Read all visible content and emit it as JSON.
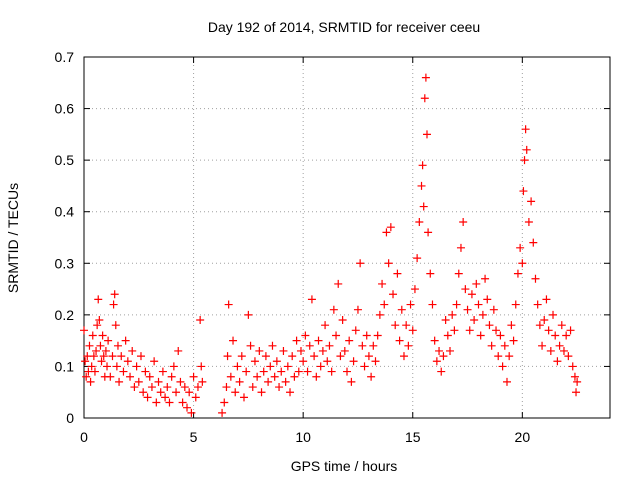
{
  "chart_data": {
    "type": "scatter",
    "title": "Day 192 of 2014, SRMTID for receiver ceeu",
    "xlabel": "GPS time / hours",
    "ylabel": "SRMTID / TECUs",
    "xlim": [
      0,
      24
    ],
    "ylim": [
      0,
      0.7
    ],
    "xticks": [
      0,
      5,
      10,
      15,
      20
    ],
    "yticks": [
      0,
      0.1,
      0.2,
      0.3,
      0.4,
      0.5,
      0.6,
      0.7
    ],
    "grid": true,
    "marker": "+",
    "color": "#ff0000",
    "series": [
      {
        "name": "SRMTID",
        "points": [
          [
            0.0,
            0.17
          ],
          [
            0.05,
            0.11
          ],
          [
            0.1,
            0.08
          ],
          [
            0.15,
            0.12
          ],
          [
            0.2,
            0.09
          ],
          [
            0.25,
            0.14
          ],
          [
            0.3,
            0.07
          ],
          [
            0.35,
            0.1
          ],
          [
            0.4,
            0.16
          ],
          [
            0.45,
            0.12
          ],
          [
            0.5,
            0.09
          ],
          [
            0.55,
            0.13
          ],
          [
            0.6,
            0.18
          ],
          [
            0.65,
            0.23
          ],
          [
            0.7,
            0.19
          ],
          [
            0.75,
            0.14
          ],
          [
            0.8,
            0.11
          ],
          [
            0.85,
            0.16
          ],
          [
            0.9,
            0.12
          ],
          [
            0.95,
            0.08
          ],
          [
            1.0,
            0.13
          ],
          [
            1.05,
            0.1
          ],
          [
            1.1,
            0.15
          ],
          [
            1.2,
            0.08
          ],
          [
            1.3,
            0.12
          ],
          [
            1.35,
            0.22
          ],
          [
            1.4,
            0.24
          ],
          [
            1.45,
            0.18
          ],
          [
            1.5,
            0.1
          ],
          [
            1.55,
            0.14
          ],
          [
            1.6,
            0.07
          ],
          [
            1.7,
            0.12
          ],
          [
            1.8,
            0.09
          ],
          [
            1.9,
            0.15
          ],
          [
            2.0,
            0.11
          ],
          [
            2.1,
            0.08
          ],
          [
            2.2,
            0.13
          ],
          [
            2.3,
            0.06
          ],
          [
            2.4,
            0.1
          ],
          [
            2.5,
            0.07
          ],
          [
            2.6,
            0.12
          ],
          [
            2.7,
            0.05
          ],
          [
            2.8,
            0.09
          ],
          [
            2.9,
            0.04
          ],
          [
            3.0,
            0.08
          ],
          [
            3.1,
            0.06
          ],
          [
            3.2,
            0.11
          ],
          [
            3.3,
            0.03
          ],
          [
            3.4,
            0.07
          ],
          [
            3.5,
            0.05
          ],
          [
            3.6,
            0.09
          ],
          [
            3.7,
            0.04
          ],
          [
            3.8,
            0.06
          ],
          [
            3.9,
            0.03
          ],
          [
            4.0,
            0.08
          ],
          [
            4.1,
            0.1
          ],
          [
            4.2,
            0.05
          ],
          [
            4.3,
            0.13
          ],
          [
            4.4,
            0.07
          ],
          [
            4.5,
            0.03
          ],
          [
            4.6,
            0.06
          ],
          [
            4.7,
            0.02
          ],
          [
            4.8,
            0.05
          ],
          [
            4.9,
            0.01
          ],
          [
            5.0,
            0.08
          ],
          [
            5.1,
            0.04
          ],
          [
            5.2,
            0.06
          ],
          [
            5.3,
            0.19
          ],
          [
            5.35,
            0.1
          ],
          [
            5.4,
            0.07
          ],
          [
            6.3,
            0.01
          ],
          [
            6.4,
            0.03
          ],
          [
            6.5,
            0.06
          ],
          [
            6.55,
            0.12
          ],
          [
            6.6,
            0.22
          ],
          [
            6.7,
            0.08
          ],
          [
            6.8,
            0.15
          ],
          [
            6.9,
            0.05
          ],
          [
            7.0,
            0.1
          ],
          [
            7.1,
            0.07
          ],
          [
            7.2,
            0.12
          ],
          [
            7.3,
            0.04
          ],
          [
            7.4,
            0.09
          ],
          [
            7.5,
            0.2
          ],
          [
            7.6,
            0.14
          ],
          [
            7.7,
            0.06
          ],
          [
            7.8,
            0.11
          ],
          [
            7.9,
            0.08
          ],
          [
            8.0,
            0.13
          ],
          [
            8.1,
            0.05
          ],
          [
            8.2,
            0.09
          ],
          [
            8.3,
            0.12
          ],
          [
            8.4,
            0.07
          ],
          [
            8.5,
            0.1
          ],
          [
            8.6,
            0.14
          ],
          [
            8.7,
            0.08
          ],
          [
            8.8,
            0.11
          ],
          [
            8.9,
            0.06
          ],
          [
            9.0,
            0.09
          ],
          [
            9.1,
            0.13
          ],
          [
            9.2,
            0.07
          ],
          [
            9.3,
            0.1
          ],
          [
            9.4,
            0.05
          ],
          [
            9.5,
            0.12
          ],
          [
            9.6,
            0.08
          ],
          [
            9.7,
            0.15
          ],
          [
            9.8,
            0.09
          ],
          [
            9.9,
            0.13
          ],
          [
            10.0,
            0.11
          ],
          [
            10.1,
            0.16
          ],
          [
            10.2,
            0.09
          ],
          [
            10.3,
            0.14
          ],
          [
            10.4,
            0.23
          ],
          [
            10.5,
            0.12
          ],
          [
            10.6,
            0.08
          ],
          [
            10.7,
            0.15
          ],
          [
            10.8,
            0.1
          ],
          [
            10.9,
            0.13
          ],
          [
            11.0,
            0.18
          ],
          [
            11.1,
            0.11
          ],
          [
            11.2,
            0.14
          ],
          [
            11.3,
            0.09
          ],
          [
            11.4,
            0.21
          ],
          [
            11.5,
            0.16
          ],
          [
            11.6,
            0.26
          ],
          [
            11.7,
            0.12
          ],
          [
            11.8,
            0.19
          ],
          [
            11.9,
            0.13
          ],
          [
            12.0,
            0.09
          ],
          [
            12.1,
            0.15
          ],
          [
            12.2,
            0.07
          ],
          [
            12.3,
            0.11
          ],
          [
            12.4,
            0.17
          ],
          [
            12.5,
            0.21
          ],
          [
            12.6,
            0.3
          ],
          [
            12.7,
            0.14
          ],
          [
            12.8,
            0.1
          ],
          [
            12.9,
            0.16
          ],
          [
            13.0,
            0.12
          ],
          [
            13.1,
            0.08
          ],
          [
            13.2,
            0.14
          ],
          [
            13.3,
            0.11
          ],
          [
            13.4,
            0.16
          ],
          [
            13.5,
            0.2
          ],
          [
            13.6,
            0.26
          ],
          [
            13.7,
            0.22
          ],
          [
            13.8,
            0.36
          ],
          [
            13.9,
            0.3
          ],
          [
            14.0,
            0.37
          ],
          [
            14.1,
            0.24
          ],
          [
            14.2,
            0.18
          ],
          [
            14.3,
            0.28
          ],
          [
            14.4,
            0.15
          ],
          [
            14.5,
            0.21
          ],
          [
            14.6,
            0.12
          ],
          [
            14.7,
            0.18
          ],
          [
            14.8,
            0.14
          ],
          [
            14.9,
            0.22
          ],
          [
            15.0,
            0.17
          ],
          [
            15.1,
            0.25
          ],
          [
            15.2,
            0.31
          ],
          [
            15.3,
            0.38
          ],
          [
            15.4,
            0.45
          ],
          [
            15.45,
            0.49
          ],
          [
            15.5,
            0.41
          ],
          [
            15.55,
            0.62
          ],
          [
            15.6,
            0.66
          ],
          [
            15.65,
            0.55
          ],
          [
            15.7,
            0.36
          ],
          [
            15.8,
            0.28
          ],
          [
            15.9,
            0.22
          ],
          [
            16.0,
            0.15
          ],
          [
            16.1,
            0.11
          ],
          [
            16.2,
            0.13
          ],
          [
            16.3,
            0.09
          ],
          [
            16.4,
            0.12
          ],
          [
            16.5,
            0.19
          ],
          [
            16.6,
            0.16
          ],
          [
            16.7,
            0.13
          ],
          [
            16.8,
            0.2
          ],
          [
            16.9,
            0.17
          ],
          [
            17.0,
            0.22
          ],
          [
            17.1,
            0.28
          ],
          [
            17.2,
            0.33
          ],
          [
            17.3,
            0.38
          ],
          [
            17.4,
            0.25
          ],
          [
            17.5,
            0.21
          ],
          [
            17.6,
            0.17
          ],
          [
            17.7,
            0.24
          ],
          [
            17.8,
            0.19
          ],
          [
            17.9,
            0.26
          ],
          [
            18.0,
            0.22
          ],
          [
            18.1,
            0.16
          ],
          [
            18.2,
            0.2
          ],
          [
            18.3,
            0.27
          ],
          [
            18.4,
            0.23
          ],
          [
            18.5,
            0.18
          ],
          [
            18.6,
            0.14
          ],
          [
            18.7,
            0.21
          ],
          [
            18.8,
            0.17
          ],
          [
            18.9,
            0.12
          ],
          [
            19.0,
            0.16
          ],
          [
            19.1,
            0.1
          ],
          [
            19.2,
            0.14
          ],
          [
            19.3,
            0.07
          ],
          [
            19.4,
            0.12
          ],
          [
            19.5,
            0.18
          ],
          [
            19.6,
            0.15
          ],
          [
            19.7,
            0.22
          ],
          [
            19.8,
            0.28
          ],
          [
            19.9,
            0.33
          ],
          [
            20.0,
            0.3
          ],
          [
            20.05,
            0.44
          ],
          [
            20.1,
            0.5
          ],
          [
            20.15,
            0.56
          ],
          [
            20.2,
            0.52
          ],
          [
            20.3,
            0.38
          ],
          [
            20.4,
            0.42
          ],
          [
            20.5,
            0.34
          ],
          [
            20.6,
            0.27
          ],
          [
            20.7,
            0.22
          ],
          [
            20.8,
            0.18
          ],
          [
            20.9,
            0.14
          ],
          [
            21.0,
            0.19
          ],
          [
            21.1,
            0.23
          ],
          [
            21.2,
            0.17
          ],
          [
            21.3,
            0.13
          ],
          [
            21.4,
            0.2
          ],
          [
            21.5,
            0.16
          ],
          [
            21.6,
            0.11
          ],
          [
            21.7,
            0.14
          ],
          [
            21.8,
            0.18
          ],
          [
            21.9,
            0.13
          ],
          [
            22.0,
            0.16
          ],
          [
            22.1,
            0.12
          ],
          [
            22.2,
            0.17
          ],
          [
            22.3,
            0.1
          ],
          [
            22.4,
            0.08
          ],
          [
            22.45,
            0.05
          ],
          [
            22.5,
            0.07
          ]
        ]
      }
    ]
  }
}
